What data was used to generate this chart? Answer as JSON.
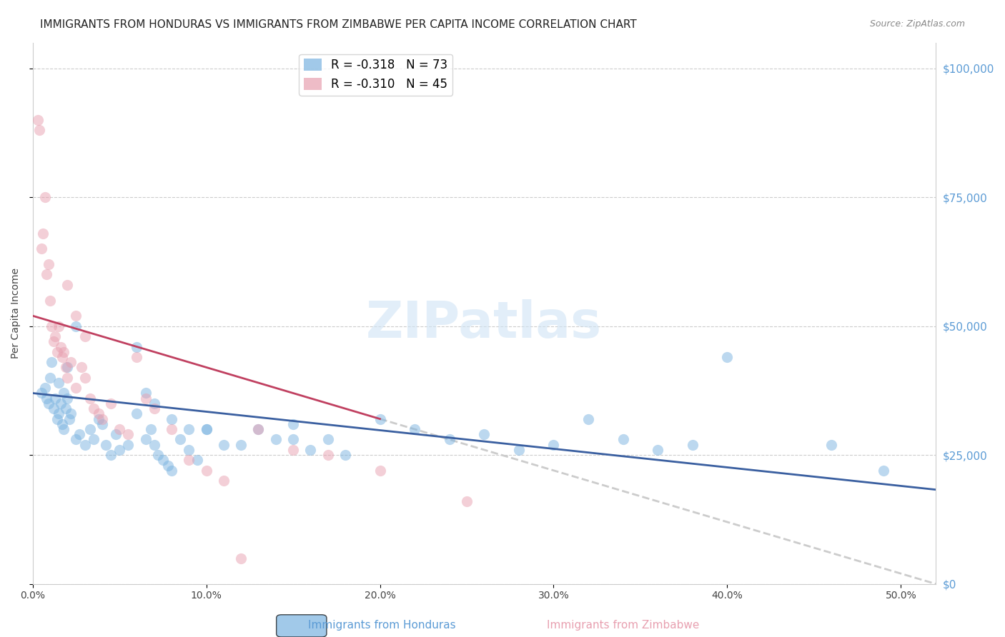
{
  "title": "IMMIGRANTS FROM HONDURAS VS IMMIGRANTS FROM ZIMBABWE PER CAPITA INCOME CORRELATION CHART",
  "source": "Source: ZipAtlas.com",
  "xlabel_bottom": [
    "0.0%",
    "50.0%"
  ],
  "ylabel": "Per Capita Income",
  "ytick_labels": [
    "$0",
    "$25,000",
    "$50,000",
    "$75,000",
    "$100,000"
  ],
  "ytick_values": [
    0,
    25000,
    50000,
    75000,
    100000
  ],
  "ylim": [
    0,
    105000
  ],
  "xlim": [
    0.0,
    0.52
  ],
  "watermark": "ZIPatlas",
  "legend_entries": [
    {
      "label": "R = -0.318   N = 73",
      "color": "#6fa8dc"
    },
    {
      "label": "R = -0.310   N = 45",
      "color": "#ea9999"
    }
  ],
  "honduras_color": "#7ab3e0",
  "zimbabwe_color": "#e8a0b0",
  "honduras_line_color": "#3a5fa0",
  "zimbabwe_line_color": "#c04060",
  "background_color": "#ffffff",
  "grid_color": "#cccccc",
  "title_color": "#222222",
  "right_axis_color": "#5b9bd5",
  "honduras_x": [
    0.005,
    0.007,
    0.008,
    0.009,
    0.01,
    0.011,
    0.012,
    0.013,
    0.014,
    0.015,
    0.016,
    0.017,
    0.018,
    0.019,
    0.02,
    0.021,
    0.022,
    0.025,
    0.027,
    0.03,
    0.033,
    0.035,
    0.038,
    0.04,
    0.042,
    0.045,
    0.048,
    0.05,
    0.055,
    0.06,
    0.065,
    0.068,
    0.07,
    0.072,
    0.075,
    0.078,
    0.08,
    0.085,
    0.09,
    0.095,
    0.1,
    0.11,
    0.12,
    0.13,
    0.14,
    0.15,
    0.16,
    0.17,
    0.18,
    0.2,
    0.22,
    0.24,
    0.26,
    0.28,
    0.3,
    0.32,
    0.34,
    0.36,
    0.38,
    0.4,
    0.015,
    0.018,
    0.02,
    0.025,
    0.06,
    0.065,
    0.07,
    0.08,
    0.09,
    0.1,
    0.15,
    0.46,
    0.49
  ],
  "honduras_y": [
    37000,
    38000,
    36000,
    35000,
    40000,
    43000,
    34000,
    36000,
    32000,
    33000,
    35000,
    31000,
    30000,
    34000,
    36000,
    32000,
    33000,
    28000,
    29000,
    27000,
    30000,
    28000,
    32000,
    31000,
    27000,
    25000,
    29000,
    26000,
    27000,
    33000,
    28000,
    30000,
    27000,
    25000,
    24000,
    23000,
    22000,
    28000,
    26000,
    24000,
    30000,
    27000,
    27000,
    30000,
    28000,
    31000,
    26000,
    28000,
    25000,
    32000,
    30000,
    28000,
    29000,
    26000,
    27000,
    32000,
    28000,
    26000,
    27000,
    44000,
    39000,
    37000,
    42000,
    50000,
    46000,
    37000,
    35000,
    32000,
    30000,
    30000,
    28000,
    27000,
    22000
  ],
  "zimbabwe_x": [
    0.003,
    0.004,
    0.005,
    0.006,
    0.007,
    0.008,
    0.009,
    0.01,
    0.011,
    0.012,
    0.013,
    0.014,
    0.015,
    0.016,
    0.017,
    0.018,
    0.019,
    0.02,
    0.022,
    0.025,
    0.028,
    0.03,
    0.033,
    0.035,
    0.038,
    0.04,
    0.045,
    0.05,
    0.055,
    0.06,
    0.065,
    0.07,
    0.08,
    0.09,
    0.1,
    0.11,
    0.12,
    0.13,
    0.15,
    0.17,
    0.02,
    0.025,
    0.03,
    0.2,
    0.25
  ],
  "zimbabwe_y": [
    90000,
    88000,
    65000,
    68000,
    75000,
    60000,
    62000,
    55000,
    50000,
    47000,
    48000,
    45000,
    50000,
    46000,
    44000,
    45000,
    42000,
    40000,
    43000,
    38000,
    42000,
    40000,
    36000,
    34000,
    33000,
    32000,
    35000,
    30000,
    29000,
    44000,
    36000,
    34000,
    30000,
    24000,
    22000,
    20000,
    5000,
    30000,
    26000,
    25000,
    58000,
    52000,
    48000,
    22000,
    16000
  ],
  "honduras_slope": -36000,
  "honduras_intercept": 37000,
  "zimbabwe_slope": -100000,
  "zimbabwe_intercept": 52000,
  "title_fontsize": 11,
  "axis_label_fontsize": 10,
  "tick_fontsize": 10,
  "legend_fontsize": 12,
  "marker_size": 120,
  "marker_alpha": 0.5,
  "line_width": 2.0
}
